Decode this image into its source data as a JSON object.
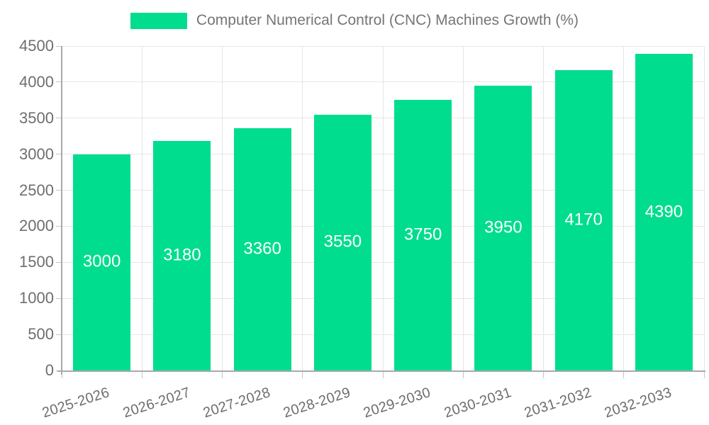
{
  "chart_data": {
    "type": "bar",
    "legend_label": "Computer Numerical Control (CNC) Machines Growth (%)",
    "categories": [
      "2025-2026",
      "2026-2027",
      "2027-2028",
      "2028-2029",
      "2029-2030",
      "2030-2031",
      "2031-2032",
      "2032-2033"
    ],
    "values": [
      3000,
      3180,
      3360,
      3550,
      3750,
      3950,
      4170,
      4390
    ],
    "ylim": [
      0,
      4500
    ],
    "ytick_step": 500,
    "yticks": [
      0,
      500,
      1000,
      1500,
      2000,
      2500,
      3000,
      3500,
      4000,
      4500
    ],
    "grid": true,
    "legend_position": "top-center",
    "value_label_position": "inside-center",
    "colors": {
      "bar": "#00DD8E",
      "value_label": "#ffffff",
      "axis_text": "#6e6e6e",
      "legend_text": "#757575",
      "grid_line": "#e6e6e6",
      "axis_line": "#a9a9a9",
      "tick": "#c6c6c6"
    }
  }
}
